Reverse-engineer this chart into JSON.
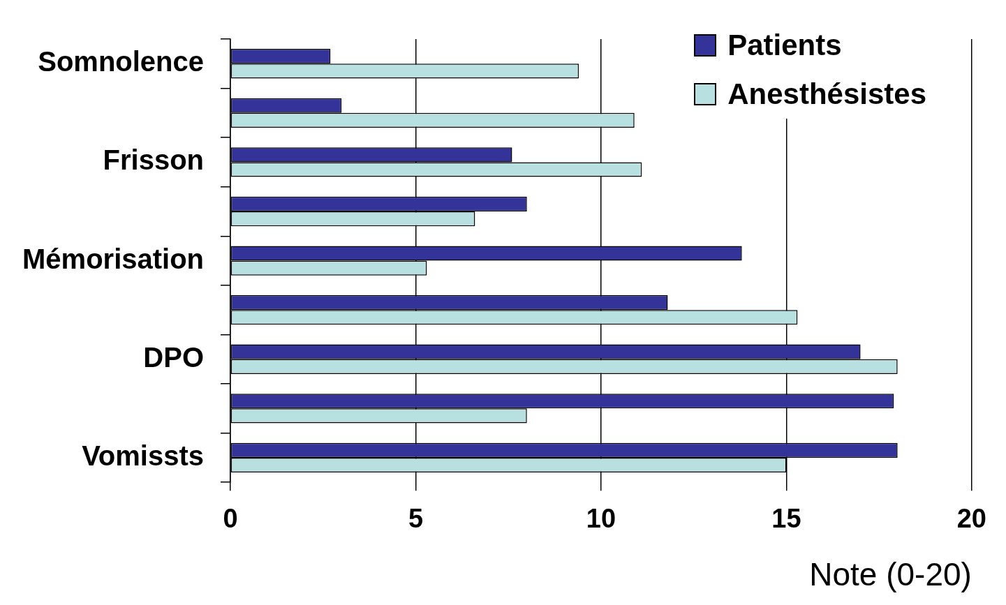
{
  "chart_data": {
    "type": "bar",
    "orientation": "horizontal",
    "xlabel": "Note (0-20)",
    "categories": [
      "Somnolence",
      null,
      "Frisson",
      null,
      "Mémorisation",
      null,
      "DPO",
      null,
      "Vomissts"
    ],
    "series": [
      {
        "name": "Patients",
        "color": "#333399",
        "values": [
          2.7,
          3.0,
          7.6,
          8.0,
          13.8,
          11.8,
          17.0,
          17.9,
          18.0
        ]
      },
      {
        "name": "Anesthésistes",
        "color": "#b9e0e0",
        "values": [
          9.4,
          10.9,
          11.1,
          6.6,
          5.3,
          15.3,
          18.0,
          8.0,
          15.0
        ]
      }
    ],
    "xlim": [
      0,
      20
    ],
    "xticks": [
      0,
      5,
      10,
      15,
      20
    ],
    "grid": "x",
    "legend": "top right"
  }
}
